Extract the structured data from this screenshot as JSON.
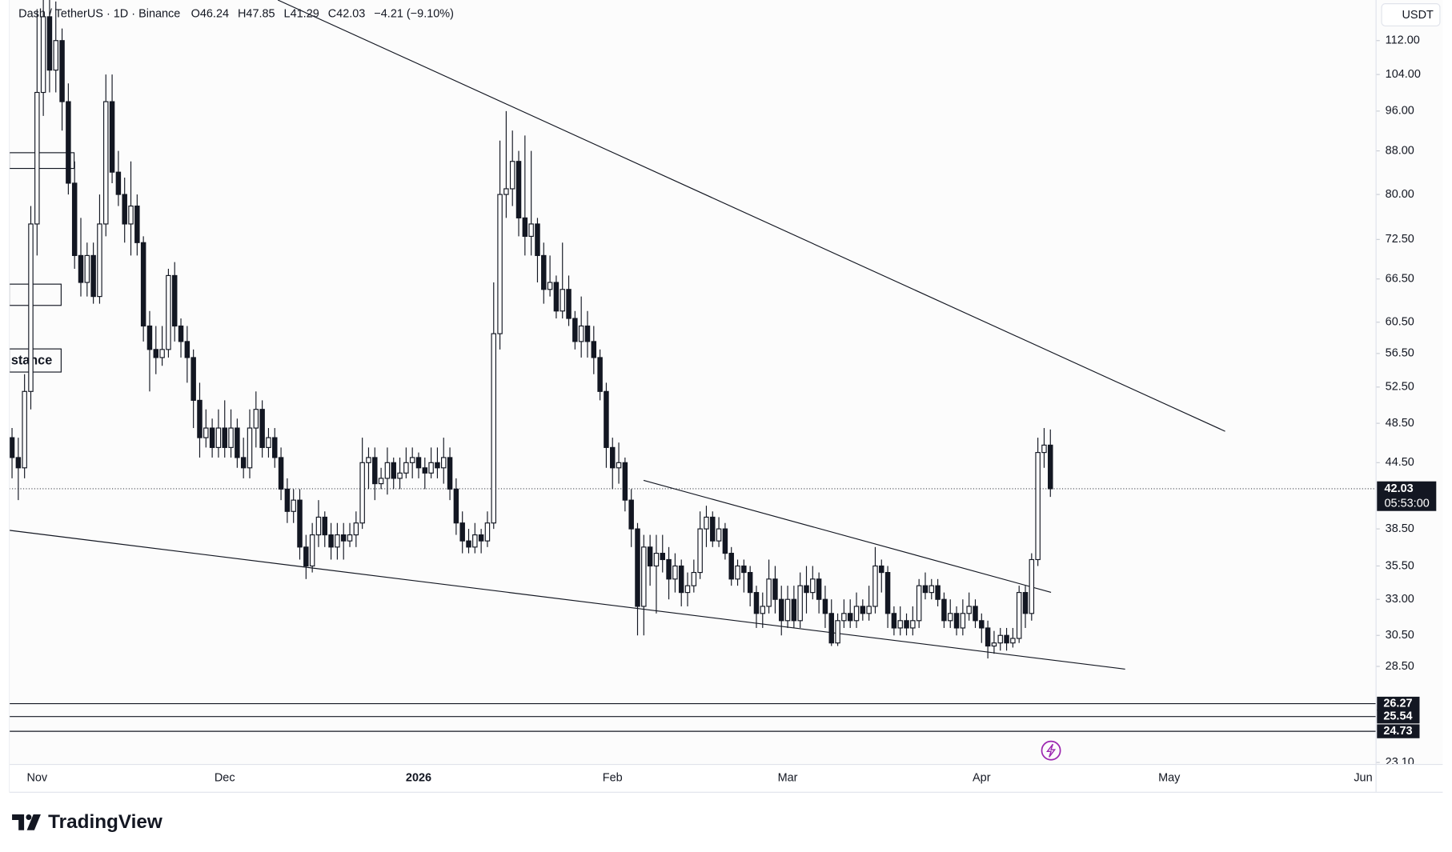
{
  "chart_data": {
    "type": "candlestick",
    "symbol": "Dash / TetherUS · 1D · Binance",
    "ohlc_letters": [
      "O",
      "H",
      "L",
      "C"
    ],
    "change": "−4.21 (−9.10%)",
    "currency": "USDT",
    "countdown": "05:53:00",
    "annotation": "stance",
    "brand": "TradingView",
    "log_scale": true,
    "grid": false,
    "up_color": "#ffffff",
    "down_color": "#131722",
    "ylim": [
      23,
      122.4
    ],
    "yticks": [
      {
        "value": 112,
        "label": "112.00"
      },
      {
        "value": 104,
        "label": "104.00"
      },
      {
        "value": 96,
        "label": "96.00"
      },
      {
        "value": 88,
        "label": "88.00"
      },
      {
        "value": 80,
        "label": "80.00"
      },
      {
        "value": 72.5,
        "label": "72.50"
      },
      {
        "value": 66.5,
        "label": "66.50"
      },
      {
        "value": 60.5,
        "label": "60.50"
      },
      {
        "value": 56.5,
        "label": "56.50"
      },
      {
        "value": 52.5,
        "label": "52.50"
      },
      {
        "value": 48.5,
        "label": "48.50"
      },
      {
        "value": 44.5,
        "label": "44.50"
      },
      {
        "value": 38.5,
        "label": "38.50"
      },
      {
        "value": 35.5,
        "label": "35.50"
      },
      {
        "value": 33,
        "label": "33.00"
      },
      {
        "value": 30.5,
        "label": "30.50"
      },
      {
        "value": 28.5,
        "label": "28.50"
      },
      {
        "value": 23.1,
        "label": "23.10"
      }
    ],
    "hlines": [
      26.27,
      25.54,
      24.73
    ],
    "categories": [
      null,
      null,
      null,
      null,
      null,
      "Nov",
      null,
      null,
      null,
      null,
      null,
      null,
      null,
      null,
      null,
      null,
      null,
      null,
      null,
      null,
      null,
      null,
      null,
      null,
      null,
      null,
      null,
      null,
      null,
      null,
      null,
      null,
      null,
      null,
      null,
      "Dec",
      null,
      null,
      null,
      null,
      null,
      null,
      null,
      null,
      null,
      null,
      null,
      null,
      null,
      null,
      null,
      null,
      null,
      null,
      null,
      null,
      null,
      null,
      null,
      null,
      null,
      null,
      null,
      null,
      null,
      null,
      "2026",
      null,
      null,
      null,
      null,
      null,
      null,
      null,
      null,
      null,
      null,
      null,
      null,
      null,
      null,
      null,
      null,
      null,
      null,
      null,
      null,
      null,
      null,
      null,
      null,
      null,
      null,
      null,
      null,
      null,
      null,
      "Feb",
      null,
      null,
      null,
      null,
      null,
      null,
      null,
      null,
      null,
      null,
      null,
      null,
      null,
      null,
      null,
      null,
      null,
      null,
      null,
      null,
      null,
      null,
      null,
      null,
      null,
      null,
      null,
      "Mar",
      null,
      null,
      null,
      null,
      null,
      null,
      null,
      null,
      null,
      null,
      null,
      null,
      null,
      null,
      null,
      null,
      null,
      null,
      null,
      null,
      null,
      null,
      null,
      null,
      null,
      null,
      null,
      null,
      null,
      null,
      "Apr",
      null,
      null,
      null,
      null,
      null,
      null,
      null,
      null,
      null,
      null,
      null,
      null,
      null,
      null,
      null,
      null,
      null,
      null,
      null,
      null,
      null,
      null,
      null,
      null,
      null,
      null,
      null,
      null,
      null,
      "May",
      null,
      null,
      null,
      null,
      null,
      null,
      null,
      null,
      null,
      null,
      null,
      null,
      null,
      null,
      null,
      null,
      null,
      null,
      null,
      null,
      null,
      null,
      null,
      null,
      null,
      null,
      null,
      null,
      null,
      null,
      "Jun"
    ],
    "open": [
      46,
      47,
      45,
      44,
      52,
      75,
      100,
      118,
      105,
      112,
      98,
      82,
      70,
      66,
      70,
      64,
      75,
      98,
      84,
      80,
      75,
      78,
      72,
      60,
      57,
      56,
      57,
      67,
      60,
      58,
      56,
      51,
      47,
      48,
      46,
      48,
      46,
      48,
      45,
      44,
      48,
      50,
      46,
      47,
      45,
      42,
      40,
      41,
      37,
      35.5,
      38,
      39.5,
      38,
      37,
      38,
      37.5,
      38,
      39,
      44.5,
      45,
      42.5,
      43,
      44.5,
      43,
      43.5,
      44.5,
      45,
      44,
      43.5,
      44.5,
      44,
      45,
      42,
      39,
      37.5,
      37,
      38,
      37.5,
      39,
      59,
      80,
      81,
      86,
      76,
      73,
      75,
      70,
      65,
      66,
      62,
      65,
      61,
      58,
      60,
      58,
      56,
      52,
      46,
      44,
      44.5,
      41,
      38.5,
      32.5,
      37,
      35.5,
      36.5,
      36,
      34.5,
      35.5,
      33.5,
      34,
      35,
      38.5,
      39.5,
      37.5,
      38.5,
      36.5,
      34.5,
      35.5,
      35,
      33.5,
      32,
      32.5,
      34.5,
      33,
      31.5,
      33,
      31.5,
      34,
      33.5,
      34.5,
      33,
      32,
      30,
      31.5,
      32,
      31.5,
      32.5,
      32,
      32.5,
      35.5,
      35,
      32,
      31,
      31.5,
      31,
      31.5,
      34,
      33.5,
      34,
      33,
      31.5,
      32,
      31,
      32,
      32.5,
      31.5,
      31,
      29.8,
      30,
      30.5,
      30,
      30.3,
      33.5,
      32,
      36,
      45.5,
      46.24,
      null,
      null,
      null,
      null,
      null,
      null,
      null,
      null,
      null,
      null,
      null,
      null,
      null,
      null,
      null,
      null,
      null,
      null,
      null,
      null,
      null,
      null,
      null,
      null,
      null,
      null,
      null,
      null,
      null,
      null,
      null,
      null,
      null,
      null,
      null,
      null,
      null,
      null,
      null,
      null,
      null,
      null,
      null,
      null,
      null,
      null,
      null,
      null,
      null,
      null
    ],
    "high": [
      49,
      48,
      47,
      54,
      78,
      120,
      128,
      130,
      122,
      115,
      102,
      86,
      76,
      72,
      72,
      80,
      104,
      104,
      88,
      83,
      86,
      80,
      73,
      62,
      60,
      60,
      68,
      69,
      61,
      60,
      57,
      53,
      50,
      49,
      50,
      51,
      50,
      49,
      47,
      50,
      52,
      51,
      48,
      48,
      46,
      43,
      42,
      42,
      38,
      39,
      41,
      40,
      39,
      39,
      39,
      39,
      40,
      47,
      46,
      46,
      44,
      46,
      45,
      45,
      46,
      46,
      45.5,
      45,
      46,
      46,
      47,
      46,
      43,
      40,
      38.5,
      39,
      38.5,
      40,
      66,
      90,
      96,
      92,
      88,
      91,
      88,
      76,
      72,
      70,
      67,
      72,
      67,
      62,
      64,
      62,
      60,
      57,
      53,
      47,
      46.5,
      45,
      42,
      39,
      38,
      38,
      38,
      38,
      37,
      36.5,
      36,
      35,
      36,
      40,
      40.5,
      40,
      39.5,
      39,
      37,
      36,
      36,
      35.5,
      34,
      33.5,
      36,
      35.5,
      34,
      34,
      34,
      35,
      35.5,
      35.5,
      35,
      34,
      33,
      32,
      33,
      33,
      33.5,
      33,
      34,
      37,
      36,
      35.5,
      32.5,
      32.5,
      32,
      32.5,
      34.5,
      35,
      34.5,
      34.5,
      33.5,
      33,
      32.5,
      33,
      33.5,
      33,
      32,
      31.5,
      30.8,
      31,
      31,
      31,
      34,
      34,
      36.5,
      47,
      48,
      47.85,
      null,
      null,
      null,
      null,
      null,
      null,
      null,
      null,
      null,
      null,
      null,
      null,
      null,
      null,
      null,
      null,
      null,
      null,
      null,
      null,
      null,
      null,
      null,
      null,
      null,
      null,
      null,
      null,
      null,
      null,
      null,
      null,
      null,
      null,
      null,
      null,
      null,
      null,
      null,
      null,
      null,
      null,
      null,
      null,
      null,
      null,
      null,
      null,
      null,
      null
    ],
    "low": [
      42,
      43,
      41,
      43,
      50,
      70,
      95,
      100,
      100,
      92,
      80,
      68,
      64,
      64,
      63,
      63,
      73,
      82,
      78,
      72,
      70,
      70,
      58,
      52,
      54,
      55,
      56,
      58,
      56,
      53,
      48,
      45,
      46,
      45,
      45,
      45,
      45,
      44,
      43,
      43,
      46,
      45,
      45,
      44,
      41,
      39,
      39,
      36,
      34.5,
      35,
      37,
      37,
      36,
      36,
      36,
      37,
      37,
      38.5,
      42,
      41,
      42,
      41.5,
      42,
      42,
      43,
      43,
      43,
      42,
      43,
      43,
      42.5,
      41,
      38,
      36.5,
      36.5,
      36.5,
      36.5,
      37,
      38.5,
      57,
      76,
      78,
      73,
      70,
      70,
      66,
      63,
      64,
      61,
      61,
      60,
      57,
      56,
      56,
      54,
      51,
      44,
      42,
      42.5,
      40,
      37,
      30.5,
      30.5,
      34,
      32,
      35,
      33,
      33.5,
      32.5,
      32.5,
      33.5,
      34.5,
      37,
      37,
      37,
      36,
      34,
      34,
      33.5,
      32.5,
      31,
      31,
      32,
      32,
      30.5,
      31,
      31,
      31,
      32,
      33,
      32,
      31,
      29.8,
      29.8,
      31,
      31,
      31,
      31.5,
      31.5,
      32,
      33.5,
      31,
      30.5,
      30.5,
      30.5,
      30.5,
      31,
      33,
      33,
      32.5,
      31,
      31,
      30.5,
      30.5,
      31.5,
      31,
      30,
      29,
      29.3,
      29.5,
      29.5,
      29.7,
      30,
      31,
      31.5,
      35.5,
      44,
      41.29,
      null,
      null,
      null,
      null,
      null,
      null,
      null,
      null,
      null,
      null,
      null,
      null,
      null,
      null,
      null,
      null,
      null,
      null,
      null,
      null,
      null,
      null,
      null,
      null,
      null,
      null,
      null,
      null,
      null,
      null,
      null,
      null,
      null,
      null,
      null,
      null,
      null,
      null,
      null,
      null,
      null,
      null,
      null,
      null,
      null,
      null,
      null,
      null,
      null,
      null
    ],
    "close": [
      47,
      45,
      44,
      52,
      75,
      100,
      118,
      105,
      112,
      98,
      82,
      70,
      66,
      70,
      64,
      75,
      98,
      84,
      80,
      75,
      78,
      72,
      60,
      57,
      56,
      57,
      67,
      60,
      58,
      56,
      51,
      47,
      48,
      46,
      48,
      46,
      48,
      45,
      44,
      48,
      50,
      46,
      47,
      45,
      42,
      40,
      41,
      37,
      35.5,
      38,
      39.5,
      38,
      37,
      38,
      37.5,
      38,
      39,
      44.5,
      45,
      42.5,
      43,
      44.5,
      43,
      43.5,
      44.5,
      45,
      44,
      43.5,
      44.5,
      44,
      45,
      42,
      39,
      37.5,
      37,
      38,
      37.5,
      39,
      59,
      80,
      81,
      86,
      76,
      73,
      75,
      70,
      65,
      66,
      62,
      65,
      61,
      58,
      60,
      58,
      56,
      52,
      46,
      44,
      44.5,
      41,
      38.5,
      32.5,
      37,
      35.5,
      36.5,
      36,
      34.5,
      35.5,
      33.5,
      34,
      35,
      38.5,
      39.5,
      37.5,
      38.5,
      36.5,
      34.5,
      35.5,
      35,
      33.5,
      32,
      32.5,
      34.5,
      33,
      31.5,
      33,
      31.5,
      34,
      33.5,
      34.5,
      33,
      32,
      30,
      31.5,
      32,
      31.5,
      32.5,
      32,
      32.5,
      35.5,
      35,
      32,
      31,
      31.5,
      31,
      31.5,
      34,
      33.5,
      34,
      33,
      31.5,
      32,
      31,
      32,
      32.5,
      31.5,
      31,
      29.8,
      30,
      30.5,
      30,
      30.3,
      33.5,
      32,
      36,
      45.5,
      46.24,
      42.03,
      null,
      null,
      null,
      null,
      null,
      null,
      null,
      null,
      null,
      null,
      null,
      null,
      null,
      null,
      null,
      null,
      null,
      null,
      null,
      null,
      null,
      null,
      null,
      null,
      null,
      null,
      null,
      null,
      null,
      null,
      null,
      null,
      null,
      null,
      null,
      null,
      null,
      null,
      null,
      null,
      null,
      null,
      null,
      null,
      null,
      null,
      null,
      null,
      null,
      null
    ]
  }
}
